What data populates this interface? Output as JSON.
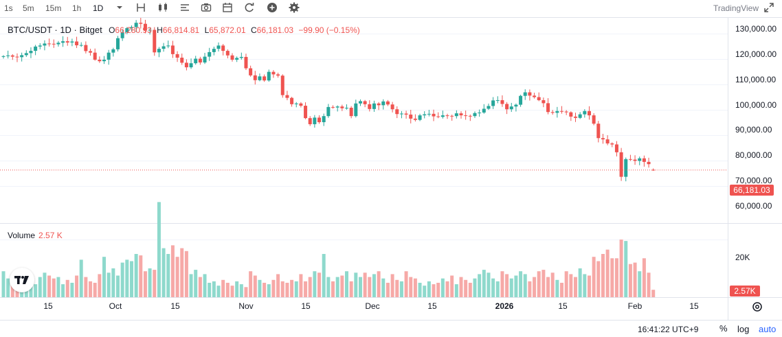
{
  "toolbar": {
    "intervals": [
      "1s",
      "5m",
      "15m",
      "1h",
      "1D"
    ],
    "selected_interval": "1D",
    "brand": "TradingView",
    "icons": [
      "chevron-down-icon",
      "bar-style-icon",
      "candles-icon",
      "indicators-icon",
      "camera-icon",
      "calendar-icon",
      "replay-icon",
      "add-icon",
      "settings-icon"
    ]
  },
  "legend": {
    "symbol": "BTC/USDT · 1D · Bitget",
    "open_label": "O",
    "open": "66,280.93",
    "high_label": "H",
    "high": "66,814.81",
    "low_label": "L",
    "low": "65,872.01",
    "close_label": "C",
    "close": "66,181.03",
    "change": "−99.90 (−0.15%)"
  },
  "volume_legend": {
    "label": "Volume",
    "value": "2.57 K"
  },
  "price_axis": {
    "ticks": [
      "130,000.00",
      "120,000.00",
      "110,000.00",
      "100,000.00",
      "90,000.00",
      "80,000.00",
      "70,000.00",
      "60,000.00"
    ],
    "last_price": "66,181.03"
  },
  "volume_axis": {
    "ticks": [
      "20K"
    ],
    "last_volume": "2.57K"
  },
  "time_axis": {
    "labels": [
      "15",
      "Oct",
      "15",
      "Nov",
      "15",
      "Dec",
      "15",
      "2026",
      "15",
      "Feb",
      "15"
    ]
  },
  "footer": {
    "clock": "16:41:22 UTC+9",
    "percent": "%",
    "log": "log",
    "auto": "auto"
  },
  "colors": {
    "up": "#26a69a",
    "down": "#ef5350",
    "up_volume": "#8ed9cc",
    "down_volume": "#f6a9a7",
    "accent": "#2962ff"
  },
  "chart_data": {
    "type": "candlestick",
    "title": "BTC/USDT · 1D · Bitget",
    "interval": "1D",
    "x_start": "2025-09-05",
    "x_end": "2026-02-09",
    "ylim": [
      55000,
      132000
    ],
    "close": [
      111200,
      111500,
      111000,
      110800,
      111600,
      112400,
      113300,
      115000,
      115400,
      116200,
      116100,
      115900,
      116500,
      117100,
      116600,
      117000,
      115500,
      115600,
      113200,
      112600,
      109800,
      109200,
      109800,
      112600,
      113900,
      118300,
      120600,
      122300,
      122700,
      124400,
      124000,
      121400,
      121600,
      112700,
      114100,
      115100,
      115400,
      112000,
      110600,
      108600,
      106800,
      108400,
      110200,
      108700,
      111000,
      112800,
      114100,
      115400,
      113300,
      111500,
      109800,
      110500,
      110900,
      106400,
      103600,
      101700,
      103200,
      101600,
      105000,
      104000,
      103500,
      95800,
      94700,
      92200,
      92500,
      91600,
      86700,
      84300,
      86900,
      85100,
      87500,
      91100,
      90900,
      91300,
      90600,
      90800,
      87500,
      92500,
      93400,
      92200,
      90300,
      92500,
      91800,
      93300,
      92100,
      90200,
      88300,
      88500,
      88100,
      86500,
      86000,
      87800,
      88200,
      88400,
      87400,
      87200,
      87800,
      87600,
      87500,
      88600,
      87800,
      87600,
      87500,
      88700,
      88900,
      90400,
      91500,
      93700,
      93800,
      92300,
      90200,
      91300,
      92000,
      95500,
      96900,
      95600,
      95000,
      93800,
      92600,
      89100,
      88800,
      89500,
      89300,
      89000,
      87300,
      86800,
      88200,
      89500,
      87800,
      84500,
      78800,
      78300,
      76700,
      76300,
      73200,
      63500,
      70500,
      70300,
      69800,
      70800,
      69400,
      68500,
      66200
    ],
    "volume": [
      9000,
      6500,
      5500,
      8000,
      7000,
      5500,
      7500,
      4500,
      7000,
      8500,
      7500,
      6500,
      7000,
      4500,
      6000,
      5000,
      7500,
      13000,
      7000,
      5500,
      5000,
      8000,
      14000,
      8500,
      10000,
      7500,
      12000,
      13000,
      12500,
      15000,
      14500,
      9000,
      10000,
      9500,
      33000,
      17000,
      15000,
      18000,
      14000,
      17000,
      16000,
      8000,
      9500,
      7000,
      8000,
      5000,
      5500,
      4000,
      6000,
      5000,
      4000,
      5500,
      4500,
      3500,
      9000,
      7500,
      6000,
      5000,
      4500,
      6000,
      8000,
      5500,
      5000,
      6000,
      5500,
      8000,
      5500,
      7000,
      9000,
      8500,
      15000,
      7000,
      5500,
      7000,
      7500,
      9000,
      5500,
      8500,
      7000,
      8500,
      7000,
      8000,
      9000,
      6500,
      5000,
      8000,
      6000,
      5500,
      9000,
      7000,
      6500,
      5000,
      4000,
      5500,
      4500,
      5000,
      6500,
      5500,
      7500,
      4500,
      7000,
      6000,
      5000,
      6500,
      8000,
      9500,
      8500,
      6500,
      5500,
      9000,
      8000,
      6500,
      7500,
      9000,
      8000,
      5500,
      7000,
      9000,
      9500,
      7000,
      8500,
      6000,
      5000,
      9000,
      8000,
      7000,
      10000,
      8000,
      7500,
      14000,
      12500,
      15000,
      16500,
      13500,
      13500,
      20000,
      19500,
      11500,
      12000,
      9000,
      13500,
      8500,
      2570
    ],
    "last_price": 66181.03
  }
}
